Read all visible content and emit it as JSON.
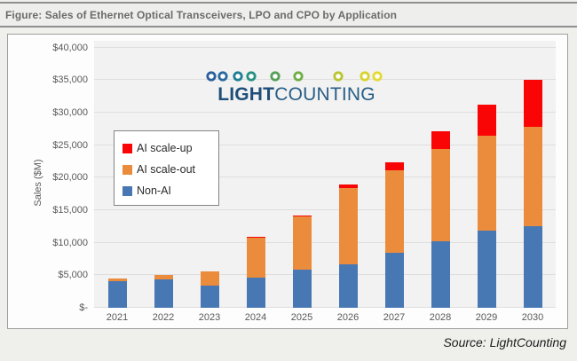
{
  "figure_header": {
    "title": "Figure: Sales of Ethernet Optical Transceivers, LPO and CPO by Application"
  },
  "logo": {
    "wordmark_bold": "LIGHT",
    "wordmark_rest": "COUNTING",
    "bead_colors": [
      "#2b5f9c",
      "#2a6a9f",
      "#1e7e95",
      "#269183",
      "#54a058",
      "#6fae46",
      "#b9c431",
      "#d8d32c",
      "#e5da33"
    ],
    "bead_positions": [
      7,
      20,
      37,
      52,
      79,
      105,
      150,
      180,
      194
    ]
  },
  "source_note": "Source: LightCounting",
  "chart_data": {
    "type": "bar",
    "stacked": true,
    "title": "",
    "xlabel": "",
    "ylabel": "Sales ($M)",
    "categories": [
      "2021",
      "2022",
      "2023",
      "2024",
      "2025",
      "2026",
      "2027",
      "2028",
      "2029",
      "2030"
    ],
    "series": [
      {
        "name": "Non-AI",
        "color": "#4878b4",
        "values": [
          4100,
          4300,
          3400,
          4600,
          5800,
          6700,
          8500,
          10200,
          11900,
          12500
        ]
      },
      {
        "name": "AI scale-out",
        "color": "#ea8c3c",
        "values": [
          400,
          800,
          2200,
          6200,
          8250,
          11650,
          12600,
          14200,
          14550,
          15300
        ]
      },
      {
        "name": "AI scale-up",
        "color": "#fa0505",
        "values": [
          0,
          0,
          0,
          100,
          150,
          600,
          1250,
          2700,
          4750,
          7300
        ]
      }
    ],
    "totals": [
      4500,
      5100,
      5600,
      10900,
      14200,
      18950,
      22350,
      27100,
      31200,
      35100
    ],
    "ylim": [
      0,
      40000
    ],
    "ytick_step": 5000,
    "ytick_labels": [
      "$-",
      "$5,000",
      "$10,000",
      "$15,000",
      "$20,000",
      "$25,000",
      "$30,000",
      "$35,000",
      "$40,000"
    ],
    "legend_order": [
      "AI scale-up",
      "AI scale-out",
      "Non-AI"
    ],
    "legend_position": "upper-left-inside",
    "grid": true
  }
}
